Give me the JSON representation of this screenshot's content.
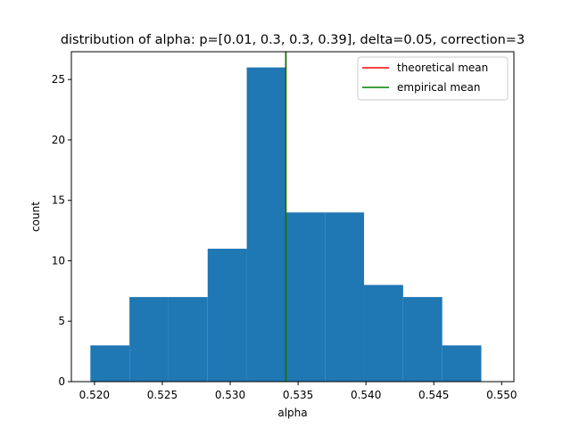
{
  "chart_data": {
    "type": "bar",
    "title": "distribution of alpha: p=[0.01, 0.3, 0.3, 0.39], delta=0.05, correction=3",
    "xlabel": "alpha",
    "ylabel": "count",
    "xlim": [
      0.5183,
      0.5509
    ],
    "ylim": [
      0,
      27.3
    ],
    "xticks": [
      0.52,
      0.525,
      0.53,
      0.535,
      0.54,
      0.545,
      0.55
    ],
    "xtick_labels": [
      "0.520",
      "0.525",
      "0.530",
      "0.535",
      "0.540",
      "0.545",
      "0.550"
    ],
    "yticks": [
      0,
      5,
      10,
      15,
      20,
      25
    ],
    "ytick_labels": [
      "0",
      "5",
      "10",
      "15",
      "20",
      "25"
    ],
    "bin_edges": [
      0.5197,
      0.52258,
      0.52546,
      0.52834,
      0.53122,
      0.5341,
      0.53698,
      0.53986,
      0.54274,
      0.54562,
      0.5485
    ],
    "values": [
      3,
      7,
      7,
      11,
      26,
      14,
      14,
      8,
      7,
      3
    ],
    "bar_color": "#1f77b4",
    "series": [
      {
        "name": "theoretical mean",
        "x": 0.5341,
        "color": "#ff0000"
      },
      {
        "name": "empirical mean",
        "x": 0.5341,
        "color": "#008000"
      }
    ],
    "legend_position": "top-right",
    "grid": false
  }
}
